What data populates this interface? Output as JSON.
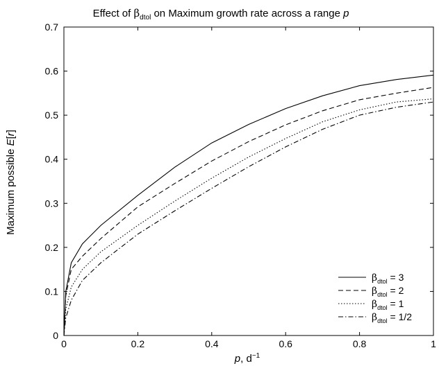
{
  "title": {
    "prefix": "Effect of ",
    "beta_symbol": "β",
    "beta_subscript": "dtol",
    "middle": " on Maximum growth rate across a range ",
    "italic_var": "p"
  },
  "xlabel": {
    "var": "p",
    "unit": ", d",
    "exponent": "−1"
  },
  "ylabel": {
    "prefix": "Maximum possible ",
    "var_e": "E",
    "open": "[",
    "var_r": "r",
    "close": "]"
  },
  "chart_data": {
    "type": "line",
    "xlim": [
      0,
      1
    ],
    "ylim": [
      0,
      0.7
    ],
    "x_ticks": [
      0,
      0.2,
      0.4,
      0.6,
      0.8,
      1
    ],
    "x_tick_labels": [
      "0",
      "0.2",
      "0.4",
      "0.6",
      "0.8",
      "1"
    ],
    "y_ticks": [
      0,
      0.1,
      0.2,
      0.3,
      0.4,
      0.5,
      0.6,
      0.7
    ],
    "y_tick_labels": [
      "0",
      "0.1",
      "0.2",
      "0.3",
      "0.4",
      "0.5",
      "0.6",
      "0.7"
    ],
    "grid": false,
    "legend_position": "bottom-right",
    "x": [
      0,
      0.005,
      0.02,
      0.05,
      0.1,
      0.2,
      0.3,
      0.4,
      0.5,
      0.6,
      0.7,
      0.8,
      0.9,
      1.0
    ],
    "series": [
      {
        "name": "3",
        "dash": "solid",
        "values": [
          0,
          0.1,
          0.165,
          0.208,
          0.25,
          0.318,
          0.382,
          0.437,
          0.479,
          0.515,
          0.544,
          0.567,
          0.581,
          0.591
        ]
      },
      {
        "name": "2",
        "dash": "dashed",
        "values": [
          0,
          0.09,
          0.15,
          0.18,
          0.22,
          0.292,
          0.345,
          0.396,
          0.44,
          0.478,
          0.51,
          0.535,
          0.55,
          0.563
        ]
      },
      {
        "name": "1",
        "dash": "dotted",
        "values": [
          0,
          0.06,
          0.11,
          0.15,
          0.19,
          0.25,
          0.305,
          0.357,
          0.405,
          0.447,
          0.485,
          0.512,
          0.53,
          0.537
        ]
      },
      {
        "name": "1/2",
        "dash": "dashdot",
        "values": [
          0,
          0.04,
          0.08,
          0.125,
          0.165,
          0.23,
          0.283,
          0.334,
          0.383,
          0.428,
          0.468,
          0.5,
          0.518,
          0.53
        ]
      }
    ]
  },
  "legend_label": {
    "beta": "β",
    "subscript": "dtol",
    "equals": " = "
  }
}
